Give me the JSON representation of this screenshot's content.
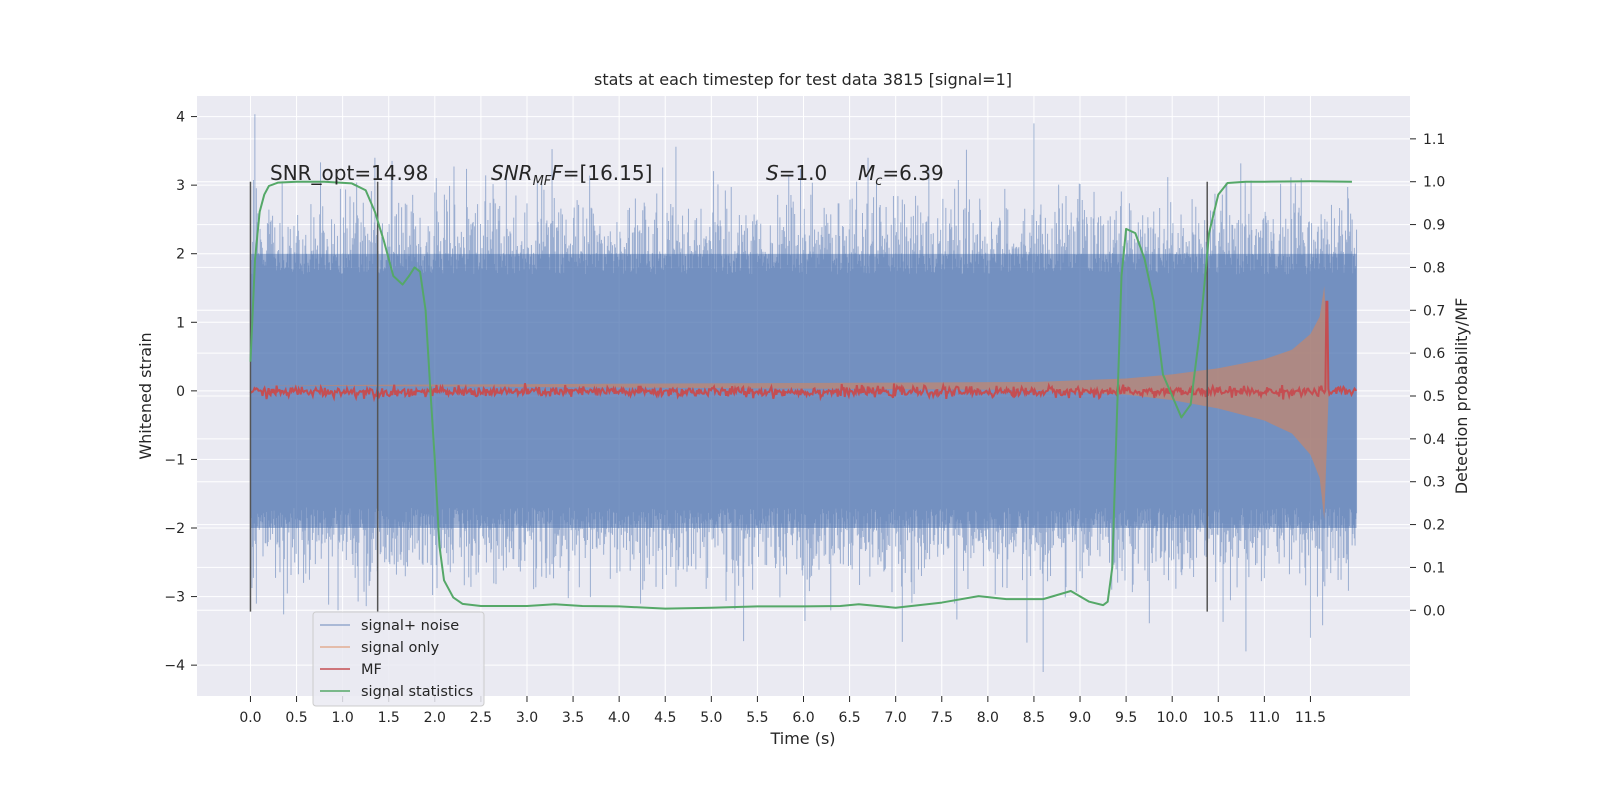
{
  "chart_data": {
    "type": "line",
    "title": "stats at each timestep for test data 3815 [signal=1]",
    "xlabel": "Time (s)",
    "ylabel_left": "Whitened strain",
    "ylabel_right": "Detection probability/MF",
    "xlim": [
      -0.58,
      12.58
    ],
    "ylim_left": [
      -4.45,
      4.3
    ],
    "ylim_right": [
      -0.2,
      1.2
    ],
    "x_ticks": [
      0.0,
      0.5,
      1.0,
      1.5,
      2.0,
      2.5,
      3.0,
      3.5,
      4.0,
      4.5,
      5.0,
      5.5,
      6.0,
      6.5,
      7.0,
      7.5,
      8.0,
      8.5,
      9.0,
      9.5,
      10.0,
      10.5,
      11.0,
      11.5
    ],
    "x_tick_labels": [
      "0.0",
      "0.5",
      "1.0",
      "1.5",
      "2.0",
      "2.5",
      "3.0",
      "3.5",
      "4.0",
      "4.5",
      "5.0",
      "5.5",
      "6.0",
      "6.5",
      "7.0",
      "7.5",
      "8.0",
      "8.5",
      "9.0",
      "9.5",
      "10.0",
      "10.5",
      "11.0",
      "11.5"
    ],
    "y_left_ticks": [
      -4,
      -3,
      -2,
      -1,
      0,
      1,
      2,
      3,
      4
    ],
    "y_left_tick_labels": [
      "−4",
      "−3",
      "−2",
      "−1",
      "0",
      "1",
      "2",
      "3",
      "4"
    ],
    "y_right_ticks": [
      0.0,
      0.1,
      0.2,
      0.3,
      0.4,
      0.5,
      0.6,
      0.7,
      0.8,
      0.9,
      1.0,
      1.1
    ],
    "y_right_tick_labels": [
      "0.0",
      "0.1",
      "0.2",
      "0.3",
      "0.4",
      "0.5",
      "0.6",
      "0.7",
      "0.8",
      "0.9",
      "1.0",
      "1.1"
    ],
    "grid": true,
    "legend_position": "bottom-left",
    "annotations": {
      "snr_opt": "SNR_opt=14.98",
      "snr_mf_main": "SNR",
      "snr_mf_sub": "MF",
      "snr_mf_value": "=[16.15]",
      "s_main": "S",
      "s_value": "=1.0",
      "mc_main": "M",
      "mc_sub": "c",
      "mc_value": "=6.39"
    },
    "vertical_lines_x": [
      0.0,
      1.38,
      10.38
    ],
    "noise_envelope": {
      "x_range": [
        0.0,
        12.0
      ],
      "typical_upper": 2.0,
      "typical_lower": -2.0,
      "peaks": [
        {
          "x": 8.5,
          "y": 3.9
        },
        {
          "x": 1.35,
          "y": 3.4
        },
        {
          "x": 6.7,
          "y": 3.4
        },
        {
          "x": 11.4,
          "y": 3.1
        },
        {
          "x": 8.6,
          "y": -4.1
        },
        {
          "x": 5.35,
          "y": -3.65
        },
        {
          "x": 10.8,
          "y": -3.8
        },
        {
          "x": 11.5,
          "y": -3.6
        },
        {
          "x": 0.95,
          "y": -3.2
        }
      ]
    },
    "series": [
      {
        "name": "signal+ noise",
        "axis": "left",
        "color": "#4c72b0",
        "style": "noise-band"
      },
      {
        "name": "signal only",
        "axis": "left",
        "color": "#dd8452",
        "style": "chirp",
        "x": [
          0.0,
          8.5,
          9.5,
          10.0,
          10.5,
          11.0,
          11.3,
          11.5,
          11.6,
          11.65,
          11.7
        ],
        "amplitude": [
          0.0,
          0.05,
          0.1,
          0.16,
          0.25,
          0.38,
          0.52,
          0.75,
          1.0,
          1.45,
          0.0
        ]
      },
      {
        "name": "MF",
        "axis": "right",
        "color": "#c44e52",
        "style": "noisy-line",
        "baseline": 0.51,
        "spike": {
          "x": 11.68,
          "y": 0.72
        }
      },
      {
        "name": "signal statistics",
        "axis": "right",
        "color": "#55a868",
        "style": "line",
        "x": [
          0.0,
          0.05,
          0.1,
          0.15,
          0.2,
          0.3,
          0.5,
          0.8,
          1.1,
          1.25,
          1.35,
          1.45,
          1.55,
          1.65,
          1.72,
          1.78,
          1.84,
          1.9,
          1.95,
          2.0,
          2.05,
          2.1,
          2.2,
          2.3,
          2.5,
          3.0,
          3.3,
          3.6,
          4.0,
          4.5,
          5.0,
          5.5,
          6.0,
          6.4,
          6.6,
          7.0,
          7.5,
          7.9,
          8.2,
          8.6,
          8.9,
          9.1,
          9.25,
          9.3,
          9.35,
          9.4,
          9.45,
          9.5,
          9.6,
          9.7,
          9.8,
          9.9,
          10.0,
          10.1,
          10.2,
          10.3,
          10.35,
          10.4,
          10.5,
          10.6,
          10.8,
          11.0,
          11.5,
          11.95
        ],
        "y": [
          0.58,
          0.82,
          0.93,
          0.97,
          0.99,
          0.998,
          1.0,
          1.0,
          0.996,
          0.98,
          0.93,
          0.86,
          0.78,
          0.76,
          0.78,
          0.8,
          0.79,
          0.7,
          0.52,
          0.35,
          0.15,
          0.07,
          0.03,
          0.015,
          0.01,
          0.01,
          0.014,
          0.01,
          0.009,
          0.004,
          0.006,
          0.009,
          0.009,
          0.01,
          0.014,
          0.006,
          0.018,
          0.033,
          0.026,
          0.026,
          0.045,
          0.02,
          0.012,
          0.02,
          0.1,
          0.45,
          0.78,
          0.89,
          0.88,
          0.82,
          0.72,
          0.55,
          0.5,
          0.45,
          0.48,
          0.65,
          0.76,
          0.88,
          0.97,
          0.997,
          1.0,
          1.0,
          1.001,
          1.0
        ]
      }
    ]
  }
}
